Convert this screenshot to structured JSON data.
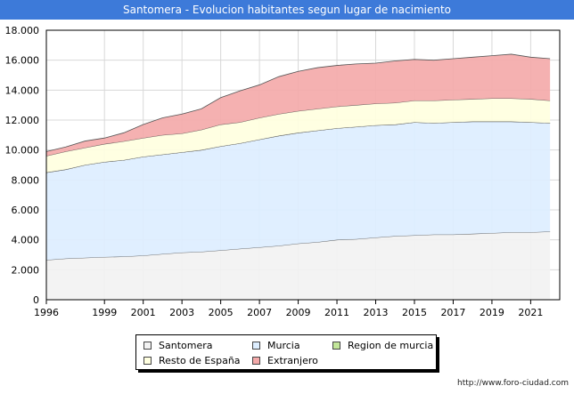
{
  "header": {
    "title": "Santomera - Evolucion habitantes segun lugar de nacimiento"
  },
  "watermark": "http://www.foro-ciudad.com",
  "chart_data": {
    "type": "area",
    "stacked": true,
    "x": [
      1996,
      1997,
      1998,
      1999,
      2000,
      2001,
      2002,
      2003,
      2004,
      2005,
      2006,
      2007,
      2008,
      2009,
      2010,
      2011,
      2012,
      2013,
      2014,
      2015,
      2016,
      2017,
      2018,
      2019,
      2020,
      2021,
      2022
    ],
    "x_ticks": [
      "1996",
      "1999",
      "2001",
      "2003",
      "2005",
      "2007",
      "2009",
      "2011",
      "2013",
      "2015",
      "2017",
      "2019",
      "2021"
    ],
    "y_ticks": [
      "0",
      "2.000",
      "4.000",
      "6.000",
      "8.000",
      "10.000",
      "12.000",
      "14.000",
      "16.000",
      "18.000"
    ],
    "ylim": [
      0,
      18000
    ],
    "grid": true,
    "series": [
      {
        "name": "Santomera",
        "color": "#f2f2f2",
        "values": [
          2650,
          2750,
          2800,
          2850,
          2880,
          2950,
          3050,
          3150,
          3200,
          3300,
          3400,
          3500,
          3600,
          3750,
          3850,
          4000,
          4050,
          4150,
          4250,
          4300,
          4350,
          4350,
          4400,
          4450,
          4500,
          4500,
          4550
        ]
      },
      {
        "name": "Murcia",
        "color": "#ddeeff",
        "values": [
          5850,
          5950,
          6200,
          6350,
          6450,
          6600,
          6650,
          6700,
          6800,
          6950,
          7050,
          7200,
          7350,
          7400,
          7450,
          7450,
          7500,
          7500,
          7450,
          7550,
          7450,
          7500,
          7500,
          7450,
          7400,
          7350,
          7250
        ]
      },
      {
        "name": "Region de murcia",
        "color": "#c2e699",
        "values": [
          0,
          0,
          0,
          0,
          0,
          0,
          0,
          0,
          0,
          0,
          0,
          0,
          0,
          0,
          0,
          0,
          0,
          0,
          0,
          0,
          0,
          0,
          0,
          0,
          0,
          0,
          0
        ]
      },
      {
        "name": "Resto de España",
        "color": "#ffffe0",
        "values": [
          1100,
          1200,
          1150,
          1200,
          1250,
          1250,
          1300,
          1250,
          1350,
          1450,
          1400,
          1450,
          1450,
          1450,
          1450,
          1450,
          1450,
          1450,
          1450,
          1450,
          1500,
          1500,
          1500,
          1550,
          1550,
          1550,
          1500
        ]
      },
      {
        "name": "Extranjero",
        "color": "#f4aaaa",
        "values": [
          300,
          300,
          450,
          400,
          570,
          900,
          1150,
          1300,
          1400,
          1800,
          2100,
          2200,
          2500,
          2650,
          2750,
          2750,
          2750,
          2700,
          2800,
          2750,
          2700,
          2750,
          2800,
          2850,
          2950,
          2800,
          2800
        ]
      }
    ]
  },
  "legend": {
    "items": [
      {
        "label": "Santomera",
        "color": "#f2f2f2"
      },
      {
        "label": "Murcia",
        "color": "#ddeeff"
      },
      {
        "label": "Region de murcia",
        "color": "#c2e699"
      },
      {
        "label": "Resto de España",
        "color": "#ffffe0"
      },
      {
        "label": "Extranjero",
        "color": "#f4aaaa"
      }
    ]
  }
}
